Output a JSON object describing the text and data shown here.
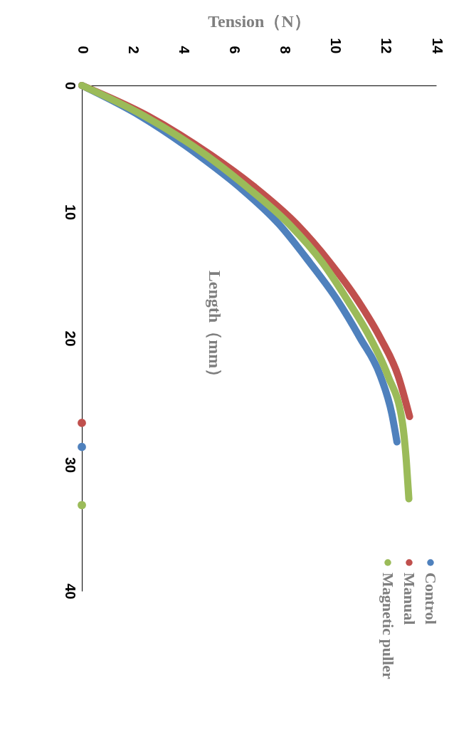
{
  "chart_data": {
    "type": "line",
    "xlabel": "Tension（N）",
    "ylabel": "Length（mm）",
    "xlim": [
      0,
      14
    ],
    "xticks": [
      0,
      2,
      4,
      6,
      8,
      10,
      12,
      14
    ],
    "ylim": [
      40,
      0
    ],
    "yticks": [
      0,
      10,
      20,
      30,
      40
    ],
    "legend": "bottom right",
    "series": [
      {
        "name": "Control",
        "color": "#4f81bd",
        "x": [
          0,
          2.3,
          4.6,
          6.2,
          7.8,
          9.0,
          10.1,
          11.0,
          11.8,
          12.25,
          12.45
        ],
        "values": [
          0,
          2.4,
          5.5,
          8,
          11,
          14,
          17,
          20,
          23,
          26,
          28.2
        ]
      },
      {
        "name": "Manual",
        "color": "#c0504d",
        "x": [
          0,
          2.6,
          5.1,
          6.8,
          8.5,
          9.8,
          10.9,
          11.8,
          12.5,
          12.95
        ],
        "values": [
          0,
          2.4,
          5.5,
          8,
          11,
          14,
          17,
          20,
          23,
          26.2
        ]
      },
      {
        "name": "Magnetic puller",
        "color": "#9bbb59",
        "x": [
          0,
          2.45,
          4.9,
          6.5,
          8.2,
          9.5,
          10.5,
          11.4,
          12.1,
          12.66,
          12.82,
          12.92
        ],
        "values": [
          0,
          2.4,
          5.5,
          8,
          11,
          14,
          17,
          20,
          23,
          26.6,
          29.7,
          32.7
        ]
      },
      {
        "type": "scatter",
        "marker": "circle",
        "color": "#c0504d",
        "x": [
          0
        ],
        "values": [
          26.7
        ]
      },
      {
        "type": "scatter",
        "marker": "circle",
        "color": "#4f81bd",
        "x": [
          0
        ],
        "values": [
          28.6
        ]
      },
      {
        "type": "scatter",
        "marker": "circle",
        "color": "#9bbb59",
        "x": [
          0
        ],
        "values": [
          33.2
        ]
      }
    ]
  }
}
